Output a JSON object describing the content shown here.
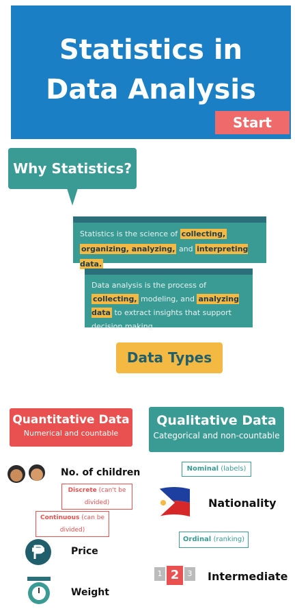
{
  "header": {
    "title_lines": [
      "Statistics in",
      "Data Analysis"
    ],
    "button": "Start"
  },
  "why": {
    "title": "Why Statistics?",
    "definitions": [
      [
        {
          "text": "Statistics is the science of ",
          "highlight": false
        },
        {
          "text": "collecting,",
          "highlight": true
        },
        {
          "text": " ",
          "highlight": false
        },
        {
          "text": "organizing, analyzing,",
          "highlight": true
        },
        {
          "text": " and ",
          "highlight": false
        },
        {
          "text": "interpreting data.",
          "highlight": true
        }
      ],
      [
        {
          "text": "Data analysis is the process of ",
          "highlight": false
        },
        {
          "text": "collecting,",
          "highlight": true
        },
        {
          "text": " modeling, and ",
          "highlight": false
        },
        {
          "text": "analyzing data",
          "highlight": true
        },
        {
          "text": " to extract insights that support decision making.",
          "highlight": false
        }
      ]
    ]
  },
  "data_types": {
    "title": "Data Types",
    "quantitative": {
      "title": "Quantitative Data",
      "subtitle": "Numerical and countable",
      "discrete": {
        "label": "Discrete",
        "note": "(can't be divided)",
        "example": "No. of children"
      },
      "continuous": {
        "label": "Continuous",
        "note": "(can be divided)",
        "examples": [
          "Price",
          "Weight"
        ]
      }
    },
    "qualitative": {
      "title": "Qualitative Data",
      "subtitle": "Categorical and non-countable",
      "nominal": {
        "label": "Nominal",
        "note": "(labels)",
        "example": "Nationality"
      },
      "ordinal": {
        "label": "Ordinal",
        "note": "(ranking)",
        "ranks": [
          "1",
          "2",
          "3"
        ],
        "example": "Intermediate"
      }
    }
  }
}
